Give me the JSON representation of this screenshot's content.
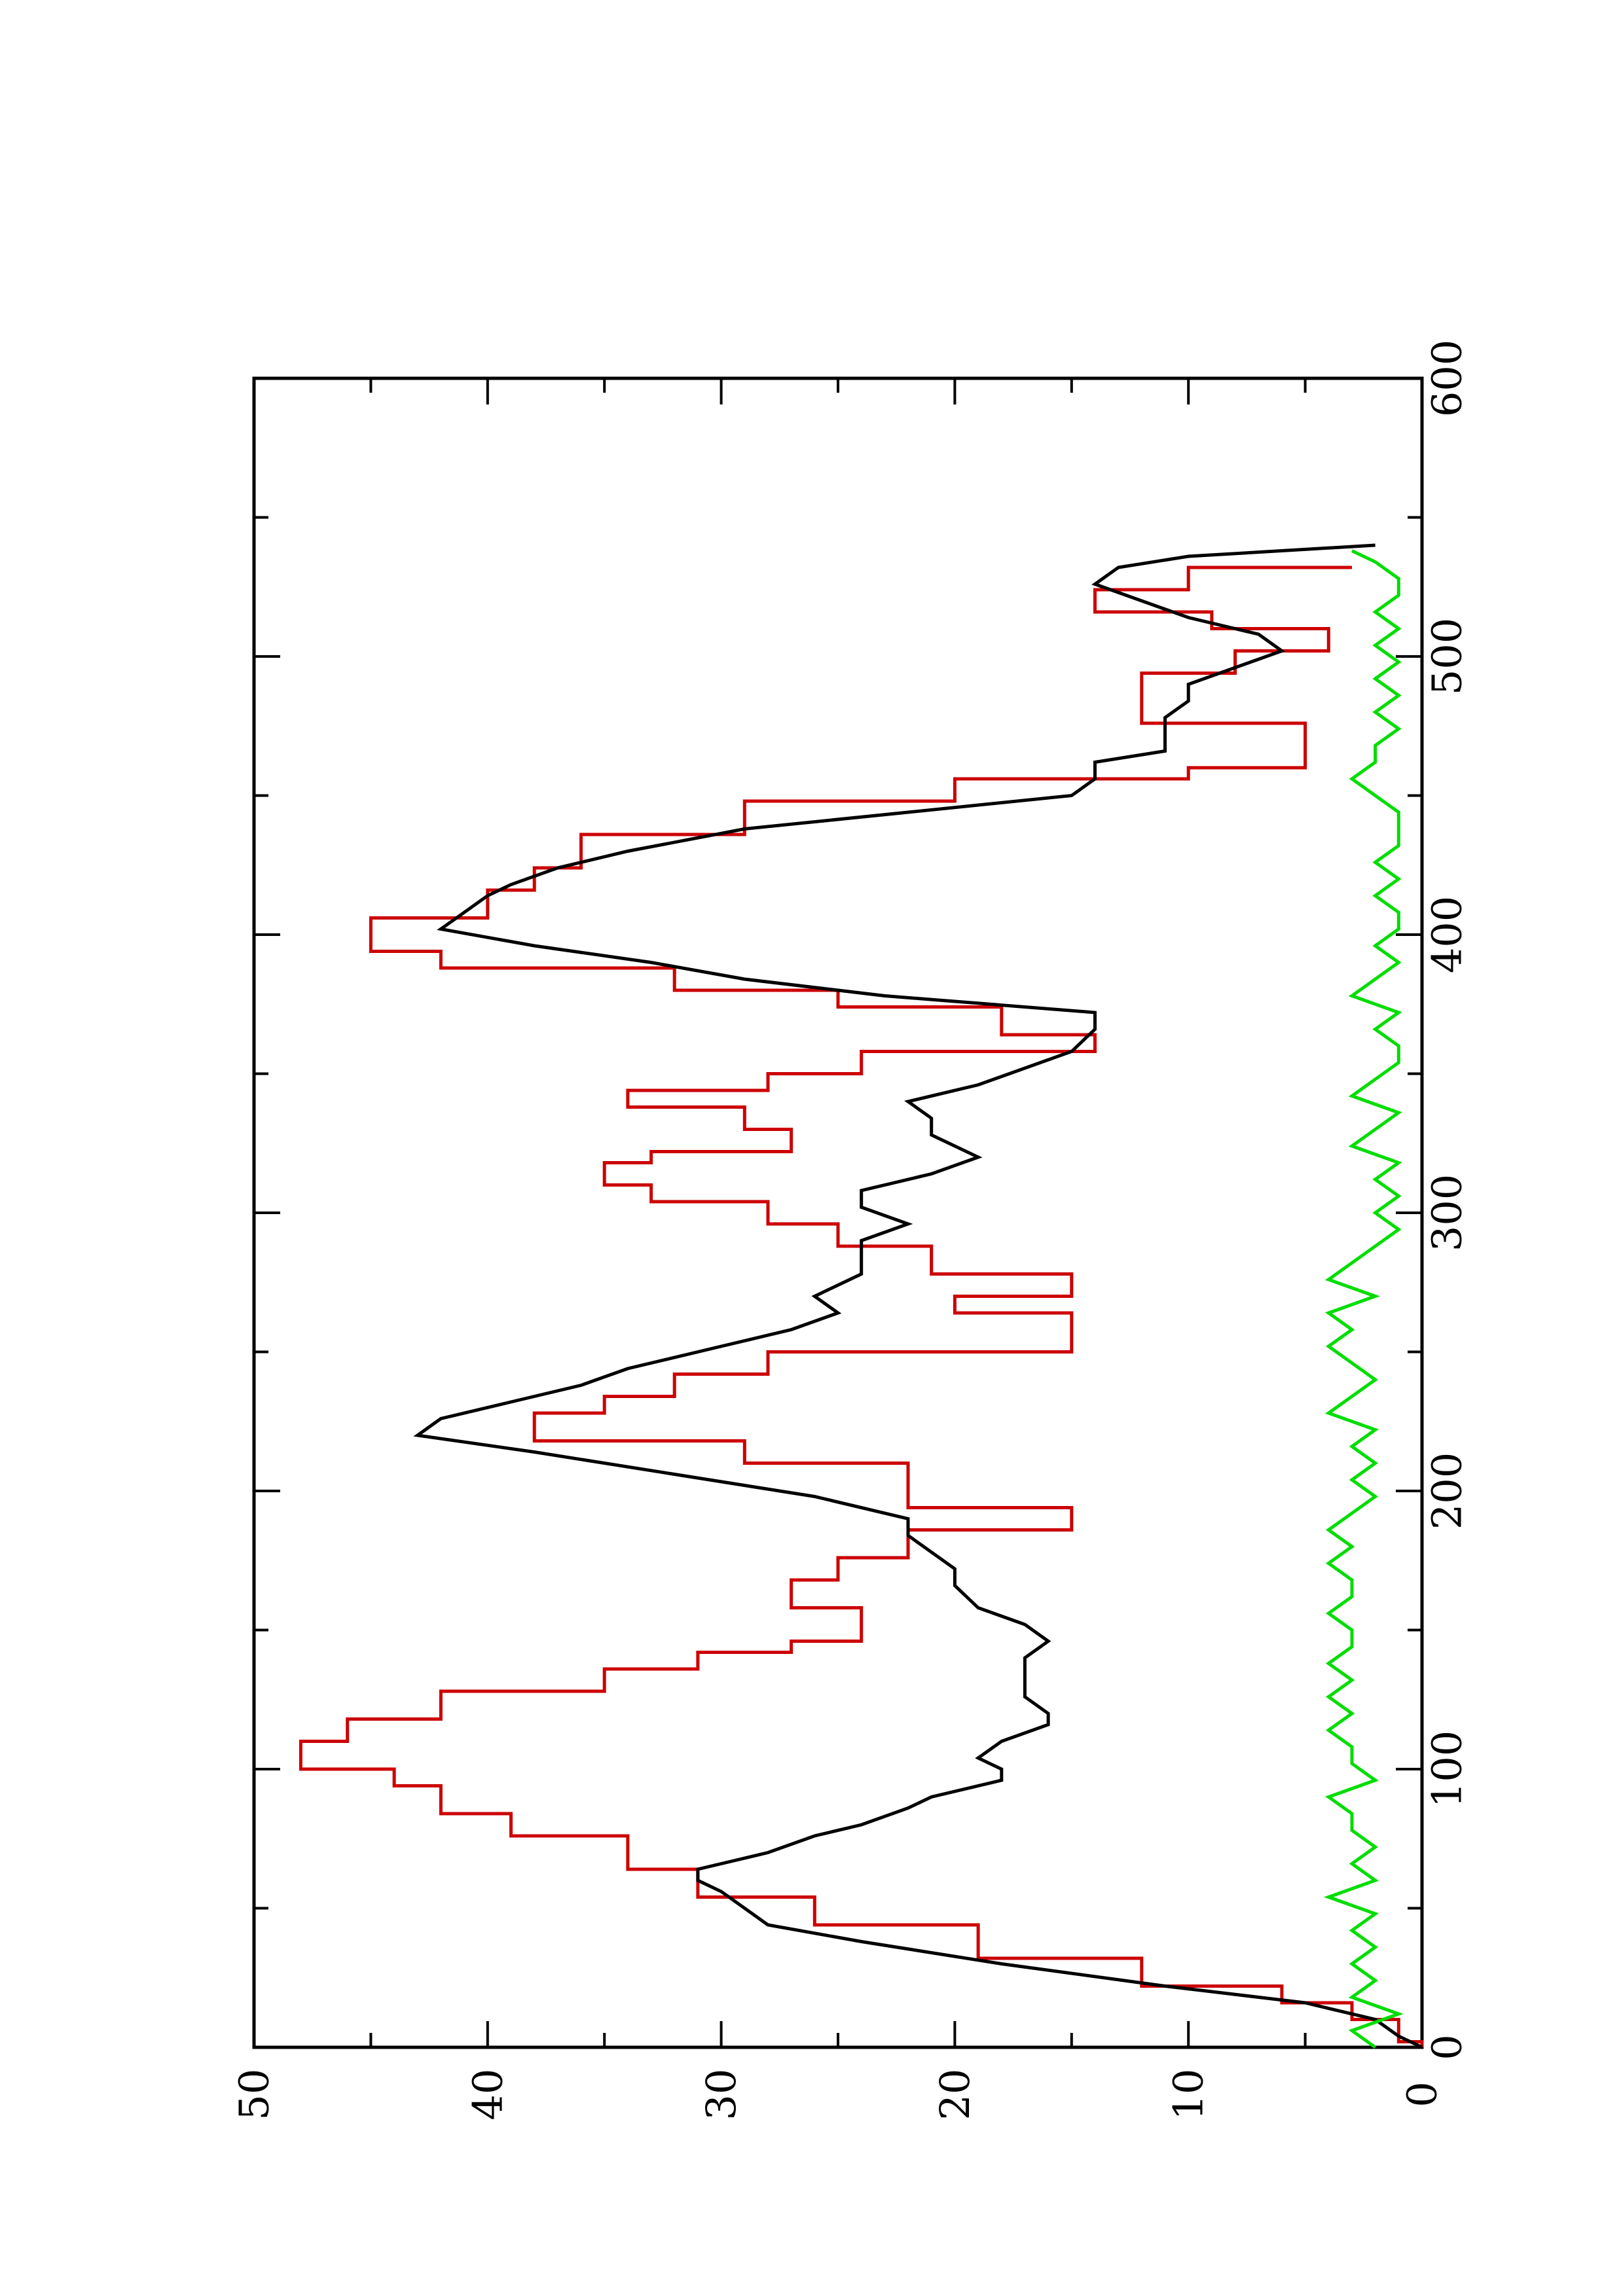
{
  "chart_data": {
    "type": "line",
    "title": "",
    "xlabel": "",
    "ylabel": "",
    "orientation": "rotated-90-ccw",
    "xlim": [
      0,
      600
    ],
    "ylim": [
      0,
      50
    ],
    "x_ticks": [
      "0",
      "100",
      "200",
      "300",
      "400",
      "500",
      "600"
    ],
    "y_ticks": [
      "0",
      "10",
      "20",
      "30",
      "40",
      "50"
    ],
    "grid": false,
    "legend": "none",
    "series": [
      {
        "color": "#cc0000",
        "style": "step",
        "x": [
          0,
          2,
          10,
          16,
          22,
          32,
          44,
          54,
          64,
          76,
          84,
          94,
          100,
          110,
          118,
          128,
          136,
          142,
          146,
          152,
          158,
          168,
          176,
          186,
          194,
          210,
          218,
          228,
          234,
          242,
          250,
          258,
          264,
          270,
          278,
          288,
          296,
          304,
          310,
          318,
          322,
          330,
          338,
          344,
          350,
          358,
          364,
          374,
          380,
          388,
          394,
          406,
          416,
          424,
          436,
          448,
          456,
          460,
          468,
          476,
          482,
          494,
          502,
          510,
          516,
          524,
          532
        ],
        "y": [
          0,
          1,
          3,
          6,
          12,
          19,
          26,
          31,
          34,
          39,
          42,
          44,
          48,
          46,
          42,
          35,
          31,
          27,
          24,
          24,
          27,
          25,
          22,
          15,
          22,
          29,
          38,
          35,
          32,
          28,
          15,
          15,
          20,
          15,
          21,
          25,
          28,
          33,
          35,
          33,
          27,
          29,
          34,
          28,
          24,
          14,
          18,
          25,
          32,
          42,
          45,
          40,
          38,
          36,
          29,
          20,
          10,
          5,
          5,
          12,
          12,
          8,
          4,
          9,
          14,
          10,
          3
        ]
      },
      {
        "color": "#000000",
        "style": "line",
        "x": [
          0,
          4,
          10,
          16,
          22,
          30,
          38,
          44,
          50,
          56,
          60,
          64,
          66,
          70,
          76,
          80,
          86,
          90,
          96,
          100,
          104,
          110,
          116,
          120,
          126,
          132,
          140,
          146,
          152,
          158,
          166,
          172,
          178,
          184,
          190,
          198,
          206,
          214,
          220,
          226,
          232,
          238,
          244,
          252,
          258,
          264,
          270,
          278,
          284,
          290,
          296,
          302,
          308,
          314,
          320,
          328,
          334,
          340,
          346,
          352,
          358,
          366,
          372,
          378,
          384,
          390,
          396,
          402,
          408,
          414,
          418,
          424,
          430,
          438,
          444,
          450,
          456,
          462,
          466,
          472,
          478,
          484,
          490,
          496,
          502,
          508,
          514,
          520,
          526,
          532,
          536,
          540
        ],
        "y": [
          0,
          1,
          2,
          5,
          11,
          18,
          24,
          28,
          29,
          30,
          31,
          31,
          30,
          28,
          26,
          24,
          22,
          21,
          18,
          18,
          19,
          18,
          16,
          16,
          17,
          17,
          17,
          16,
          17,
          19,
          20,
          20,
          21,
          22,
          22,
          26,
          32,
          38,
          43,
          42,
          39,
          36,
          34,
          30,
          27,
          25,
          26,
          24,
          24,
          24,
          22,
          24,
          24,
          21,
          19,
          21,
          21,
          22,
          19,
          17,
          15,
          14,
          14,
          23,
          29,
          33,
          38,
          42,
          41,
          40,
          39,
          37,
          34,
          29,
          22,
          15,
          14,
          14,
          11,
          11,
          11,
          10,
          10,
          8,
          6,
          7,
          10,
          12,
          14,
          13,
          10,
          2
        ]
      },
      {
        "color": "#00dd00",
        "style": "line",
        "x": [
          0,
          6,
          12,
          18,
          24,
          30,
          36,
          42,
          48,
          54,
          60,
          66,
          72,
          78,
          84,
          90,
          96,
          102,
          108,
          114,
          120,
          126,
          132,
          138,
          144,
          150,
          156,
          162,
          168,
          174,
          180,
          186,
          192,
          198,
          204,
          210,
          216,
          222,
          228,
          234,
          240,
          246,
          252,
          258,
          264,
          270,
          276,
          282,
          288,
          294,
          300,
          306,
          312,
          318,
          324,
          330,
          336,
          342,
          348,
          354,
          360,
          366,
          372,
          378,
          384,
          390,
          396,
          402,
          408,
          414,
          420,
          426,
          432,
          438,
          444,
          450,
          456,
          462,
          468,
          474,
          480,
          486,
          492,
          498,
          504,
          510,
          516,
          522,
          528,
          534,
          538
        ],
        "y": [
          2,
          3,
          1,
          3,
          2,
          3,
          2,
          3,
          2,
          4,
          2,
          3,
          2,
          3,
          3,
          4,
          2,
          3,
          3,
          4,
          3,
          4,
          3,
          4,
          3,
          3,
          4,
          3,
          3,
          4,
          3,
          4,
          3,
          2,
          3,
          2,
          3,
          2,
          4,
          3,
          2,
          3,
          4,
          3,
          4,
          2,
          4,
          3,
          2,
          1,
          2,
          1,
          2,
          1,
          3,
          2,
          1,
          3,
          2,
          1,
          1,
          2,
          1,
          3,
          2,
          1,
          2,
          1,
          1,
          2,
          1,
          2,
          1,
          1,
          1,
          2,
          3,
          2,
          2,
          1,
          2,
          1,
          2,
          1,
          2,
          1,
          2,
          1,
          1,
          2,
          3
        ]
      }
    ]
  }
}
